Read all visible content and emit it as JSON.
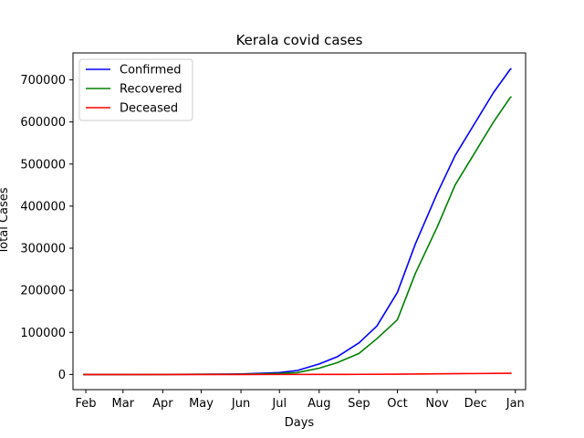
{
  "chart_data": {
    "type": "line",
    "title": "Kerala covid cases",
    "xlabel": "Days",
    "ylabel": "Total Cases",
    "x_ticks": [
      "Feb",
      "Mar",
      "Apr",
      "May",
      "Jun",
      "Jul",
      "Aug",
      "Sep",
      "Oct",
      "Nov",
      "Dec",
      "Jan"
    ],
    "x_tick_dates": [
      "2020-02-01",
      "2020-03-01",
      "2020-04-01",
      "2020-05-01",
      "2020-06-01",
      "2020-07-01",
      "2020-08-01",
      "2020-09-01",
      "2020-10-01",
      "2020-11-01",
      "2020-12-01",
      "2021-01-01"
    ],
    "y_ticks": [
      0,
      100000,
      200000,
      300000,
      400000,
      500000,
      600000,
      700000
    ],
    "y_tick_labels": [
      "0",
      "100000",
      "200000",
      "300000",
      "400000",
      "500000",
      "600000",
      "700000"
    ],
    "xlim": [
      "2020-01-22",
      "2021-01-09"
    ],
    "ylim": [
      -36000,
      764000
    ],
    "legend_position": "top-left",
    "grid": false,
    "series": [
      {
        "name": "Confirmed",
        "color": "#0000ff",
        "points": [
          [
            "2020-01-30",
            1
          ],
          [
            "2020-03-01",
            3
          ],
          [
            "2020-04-01",
            265
          ],
          [
            "2020-05-01",
            497
          ],
          [
            "2020-06-01",
            1300
          ],
          [
            "2020-06-15",
            2600
          ],
          [
            "2020-07-01",
            4600
          ],
          [
            "2020-07-15",
            9500
          ],
          [
            "2020-08-01",
            25000
          ],
          [
            "2020-08-15",
            42000
          ],
          [
            "2020-09-01",
            75000
          ],
          [
            "2020-09-15",
            115000
          ],
          [
            "2020-10-01",
            195000
          ],
          [
            "2020-10-15",
            310000
          ],
          [
            "2020-11-01",
            430000
          ],
          [
            "2020-11-15",
            520000
          ],
          [
            "2020-12-01",
            600000
          ],
          [
            "2020-12-15",
            670000
          ],
          [
            "2020-12-28",
            725000
          ],
          [
            "2020-12-29",
            727000
          ]
        ]
      },
      {
        "name": "Recovered",
        "color": "#008000",
        "points": [
          [
            "2020-01-30",
            0
          ],
          [
            "2020-03-01",
            0
          ],
          [
            "2020-04-01",
            20
          ],
          [
            "2020-05-01",
            370
          ],
          [
            "2020-06-01",
            620
          ],
          [
            "2020-06-15",
            1300
          ],
          [
            "2020-07-01",
            2400
          ],
          [
            "2020-07-15",
            4500
          ],
          [
            "2020-08-01",
            15000
          ],
          [
            "2020-08-15",
            28000
          ],
          [
            "2020-09-01",
            50000
          ],
          [
            "2020-09-15",
            85000
          ],
          [
            "2020-10-01",
            130000
          ],
          [
            "2020-10-15",
            240000
          ],
          [
            "2020-11-01",
            350000
          ],
          [
            "2020-11-15",
            450000
          ],
          [
            "2020-12-01",
            530000
          ],
          [
            "2020-12-15",
            600000
          ],
          [
            "2020-12-28",
            658000
          ],
          [
            "2020-12-29",
            660000
          ]
        ]
      },
      {
        "name": "Deceased",
        "color": "#ff0000",
        "points": [
          [
            "2020-01-30",
            0
          ],
          [
            "2020-03-01",
            0
          ],
          [
            "2020-04-01",
            2
          ],
          [
            "2020-05-01",
            4
          ],
          [
            "2020-06-01",
            10
          ],
          [
            "2020-07-01",
            27
          ],
          [
            "2020-08-01",
            85
          ],
          [
            "2020-09-01",
            300
          ],
          [
            "2020-10-01",
            750
          ],
          [
            "2020-11-01",
            1500
          ],
          [
            "2020-12-01",
            2200
          ],
          [
            "2020-12-29",
            2900
          ]
        ]
      }
    ]
  }
}
